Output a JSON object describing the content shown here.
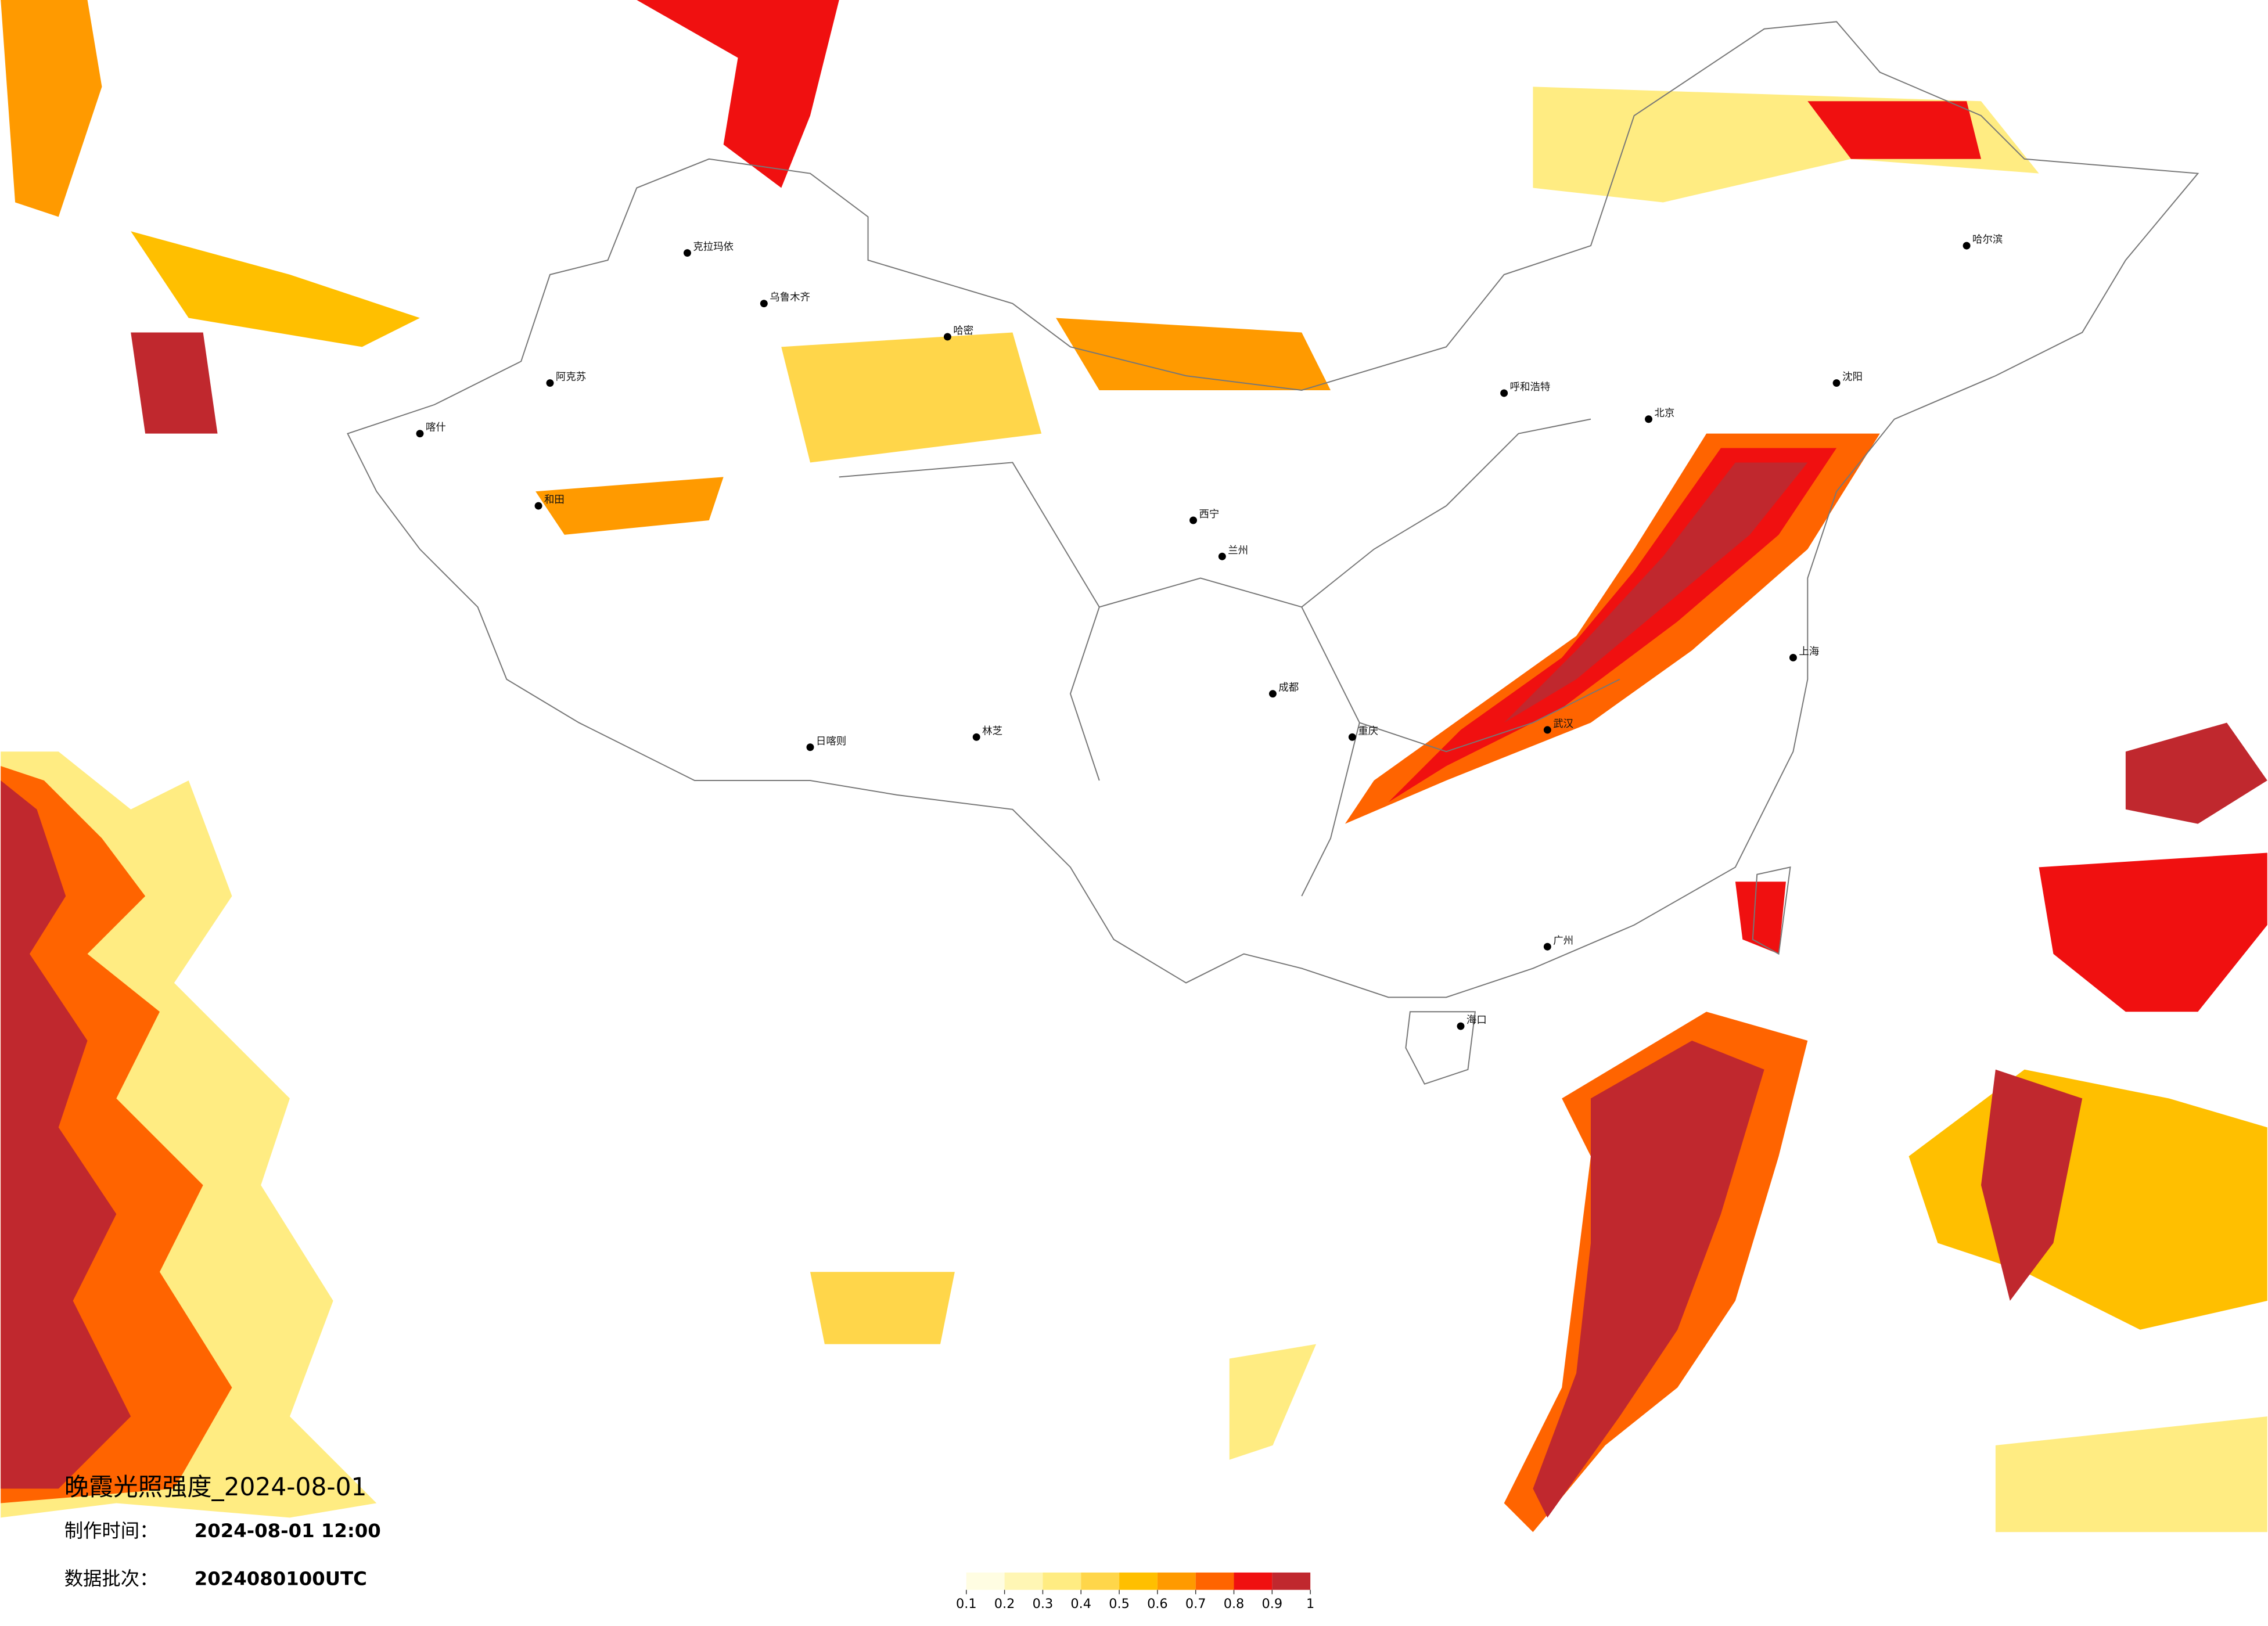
{
  "header": {
    "title": "晚霞光照强度_2024-08-01",
    "made_label": "制作时间：",
    "made_time": "2024-08-01 12:00",
    "batch_label": "数据批次：",
    "batch": "2024080100UTC"
  },
  "legend": {
    "ticks": [
      0.1,
      0.2,
      0.3,
      0.4,
      0.5,
      0.6,
      0.7,
      0.8,
      0.9,
      1
    ],
    "colors": [
      "#fffde2",
      "#fff6b4",
      "#ffec82",
      "#ffd64a",
      "#ffbf00",
      "#ff9a00",
      "#ff6400",
      "#f01010",
      "#c0282e"
    ]
  },
  "cities": [
    "克拉玛依",
    "乌鲁木齐",
    "哈密",
    "阿克苏",
    "喀什",
    "和田",
    "日喀则",
    "林芝",
    "西宁",
    "兰州",
    "成都",
    "重庆",
    "武汉",
    "上海",
    "广州",
    "海口",
    "哈尔滨",
    "沈阳",
    "北京",
    "呼和浩特"
  ]
}
